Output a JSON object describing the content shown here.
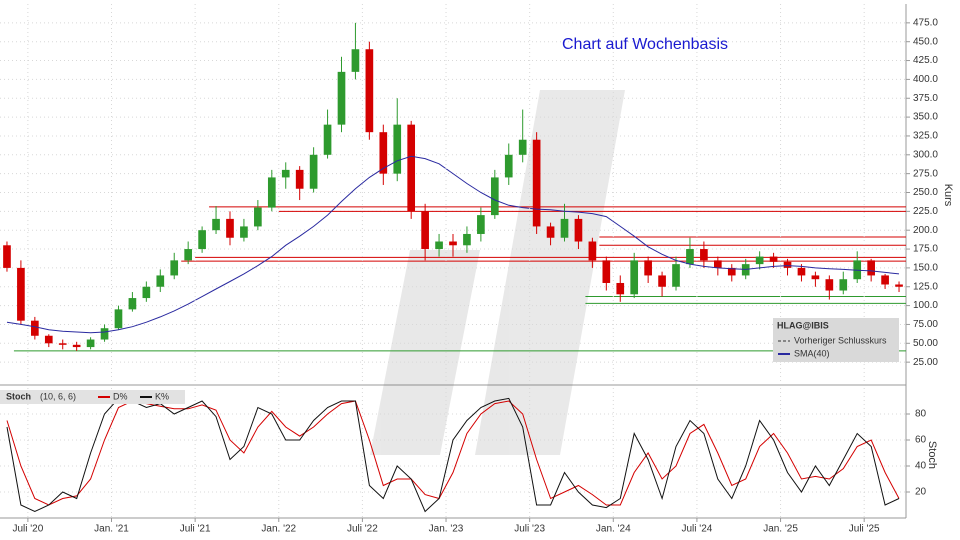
{
  "chart_data": [
    {
      "type": "candlestick",
      "title": "Chart auf Wochenbasis",
      "y_label": "Kurs",
      "instrument": "HLAG@IBIS",
      "prev_close_label": "Vorheriger Schlusskurs",
      "x": [
        "2020-05",
        "2020-06",
        "2020-07",
        "2020-08",
        "2020-09",
        "2020-10",
        "2020-11",
        "2020-12",
        "2021-01",
        "2021-02",
        "2021-03",
        "2021-04",
        "2021-05",
        "2021-06",
        "2021-07",
        "2021-08",
        "2021-09",
        "2021-10",
        "2021-11",
        "2021-12",
        "2022-01",
        "2022-02",
        "2022-03",
        "2022-04",
        "2022-05",
        "2022-06",
        "2022-07",
        "2022-08",
        "2022-09",
        "2022-10",
        "2022-11",
        "2022-12",
        "2023-01",
        "2023-02",
        "2023-03",
        "2023-04",
        "2023-05",
        "2023-06",
        "2023-07",
        "2023-08",
        "2023-09",
        "2023-10",
        "2023-11",
        "2023-12",
        "2024-01",
        "2024-02",
        "2024-03",
        "2024-04",
        "2024-05",
        "2024-06",
        "2024-07",
        "2024-08",
        "2024-09",
        "2024-10",
        "2024-11",
        "2024-12",
        "2025-01",
        "2025-02",
        "2025-03",
        "2025-04",
        "2025-05",
        "2025-06",
        "2025-07",
        "2025-08",
        "2025-09"
      ],
      "open": [
        180,
        150,
        80,
        60,
        50,
        48,
        45,
        55,
        70,
        95,
        110,
        125,
        140,
        160,
        175,
        200,
        215,
        190,
        205,
        230,
        270,
        280,
        255,
        300,
        340,
        410,
        440,
        330,
        275,
        340,
        225,
        175,
        185,
        180,
        195,
        220,
        270,
        300,
        320,
        205,
        190,
        215,
        185,
        160,
        130,
        115,
        160,
        140,
        125,
        155,
        175,
        160,
        150,
        140,
        155,
        165,
        158,
        150,
        140,
        135,
        120,
        135,
        160,
        140,
        128
      ],
      "high": [
        185,
        160,
        85,
        62,
        55,
        52,
        58,
        75,
        100,
        118,
        132,
        148,
        170,
        185,
        205,
        232,
        225,
        215,
        240,
        280,
        290,
        285,
        310,
        360,
        430,
        475,
        450,
        340,
        375,
        345,
        235,
        195,
        195,
        205,
        230,
        280,
        315,
        360,
        330,
        210,
        235,
        220,
        190,
        165,
        140,
        170,
        165,
        145,
        165,
        190,
        185,
        165,
        155,
        162,
        172,
        170,
        162,
        155,
        145,
        140,
        145,
        172,
        162,
        142,
        132
      ],
      "low": [
        145,
        75,
        55,
        45,
        42,
        40,
        42,
        52,
        68,
        92,
        105,
        118,
        135,
        155,
        170,
        195,
        180,
        185,
        200,
        225,
        255,
        240,
        250,
        295,
        330,
        400,
        320,
        260,
        265,
        215,
        160,
        165,
        165,
        170,
        185,
        215,
        260,
        290,
        195,
        180,
        185,
        175,
        150,
        120,
        105,
        110,
        130,
        112,
        120,
        150,
        150,
        140,
        132,
        135,
        148,
        150,
        140,
        132,
        125,
        108,
        115,
        130,
        132,
        122,
        118
      ],
      "close": [
        150,
        80,
        60,
        50,
        48,
        45,
        55,
        70,
        95,
        110,
        125,
        140,
        160,
        175,
        200,
        215,
        190,
        205,
        230,
        270,
        280,
        255,
        300,
        340,
        410,
        440,
        330,
        275,
        340,
        225,
        175,
        185,
        180,
        195,
        220,
        270,
        300,
        320,
        205,
        190,
        215,
        185,
        160,
        130,
        115,
        160,
        140,
        125,
        155,
        175,
        160,
        150,
        140,
        155,
        165,
        158,
        150,
        140,
        135,
        120,
        135,
        160,
        140,
        128,
        125
      ],
      "up_color": "#2e9a2e",
      "down_color": "#d40000",
      "series": [
        {
          "name": "SMA(40)",
          "color": "#2a2aa0",
          "values": [
            78,
            75,
            72,
            68,
            66,
            65,
            64,
            65,
            68,
            72,
            78,
            85,
            93,
            102,
            112,
            122,
            132,
            142,
            153,
            165,
            180,
            192,
            205,
            220,
            238,
            255,
            270,
            282,
            292,
            298,
            295,
            288,
            275,
            262,
            250,
            240,
            233,
            230,
            228,
            227,
            225,
            224,
            222,
            218,
            205,
            192,
            178,
            168,
            160,
            155,
            152,
            150,
            149,
            148,
            150,
            152,
            153,
            152,
            150,
            149,
            148,
            147,
            146,
            144,
            142
          ]
        }
      ],
      "hlines": [
        {
          "y": 231,
          "color": "#d40000",
          "start": "2021-08"
        },
        {
          "y": 225,
          "color": "#d40000",
          "start": "2022-01"
        },
        {
          "y": 164,
          "color": "#d40000",
          "start": "2021-07"
        },
        {
          "y": 159,
          "color": "#d40000",
          "start": "2021-06"
        },
        {
          "y": 191,
          "color": "#d40000",
          "start": "2023-12"
        },
        {
          "y": 180,
          "color": "#d40000",
          "start": "2023-12"
        },
        {
          "y": 112,
          "color": "#2e9a2e",
          "start": "2023-11"
        },
        {
          "y": 103,
          "color": "#2e9a2e",
          "start": "2023-11"
        },
        {
          "y": 40,
          "color": "#2e9a2e",
          "start": "2020-06"
        }
      ],
      "xlim": [
        "2020-05",
        "2025-10"
      ],
      "ylim": [
        0,
        500
      ],
      "yticks": [
        {
          "value": 25,
          "label": "25.00"
        },
        {
          "value": 50,
          "label": "50.00"
        },
        {
          "value": 75,
          "label": "75.00"
        },
        {
          "value": 100,
          "label": "100.0"
        },
        {
          "value": 125,
          "label": "125.0"
        },
        {
          "value": 150,
          "label": "150.0"
        },
        {
          "value": 175,
          "label": "175.0"
        },
        {
          "value": 200,
          "label": "200.0"
        },
        {
          "value": 225,
          "label": "225.0"
        },
        {
          "value": 250,
          "label": "250.0"
        },
        {
          "value": 275,
          "label": "275.0"
        },
        {
          "value": 300,
          "label": "300.0"
        },
        {
          "value": 325,
          "label": "325.0"
        },
        {
          "value": 350,
          "label": "350.0"
        },
        {
          "value": 375,
          "label": "375.0"
        },
        {
          "value": 400,
          "label": "400.0"
        },
        {
          "value": 425,
          "label": "425.0"
        },
        {
          "value": 450,
          "label": "450.0"
        },
        {
          "value": 475,
          "label": "475.0"
        }
      ],
      "grid": true
    },
    {
      "type": "line",
      "title": "Stoch",
      "subtitle": "(10, 6, 6)",
      "y_label": "Stoch",
      "x": [
        "2020-05",
        "2020-06",
        "2020-07",
        "2020-08",
        "2020-09",
        "2020-10",
        "2020-11",
        "2020-12",
        "2021-01",
        "2021-02",
        "2021-03",
        "2021-04",
        "2021-05",
        "2021-06",
        "2021-07",
        "2021-08",
        "2021-09",
        "2021-10",
        "2021-11",
        "2021-12",
        "2022-01",
        "2022-02",
        "2022-03",
        "2022-04",
        "2022-05",
        "2022-06",
        "2022-07",
        "2022-08",
        "2022-09",
        "2022-10",
        "2022-11",
        "2022-12",
        "2023-01",
        "2023-02",
        "2023-03",
        "2023-04",
        "2023-05",
        "2023-06",
        "2023-07",
        "2023-08",
        "2023-09",
        "2023-10",
        "2023-11",
        "2023-12",
        "2024-01",
        "2024-02",
        "2024-03",
        "2024-04",
        "2024-05",
        "2024-06",
        "2024-07",
        "2024-08",
        "2024-09",
        "2024-10",
        "2024-11",
        "2024-12",
        "2025-01",
        "2025-02",
        "2025-03",
        "2025-04",
        "2025-05",
        "2025-06",
        "2025-07",
        "2025-08",
        "2025-09"
      ],
      "series": [
        {
          "name": "D%",
          "color": "#d40000",
          "values": [
            75,
            40,
            15,
            10,
            15,
            17,
            30,
            60,
            85,
            90,
            88,
            86,
            84,
            84,
            87,
            83,
            60,
            50,
            70,
            82,
            70,
            63,
            70,
            80,
            88,
            90,
            60,
            25,
            30,
            30,
            18,
            15,
            35,
            65,
            80,
            88,
            90,
            80,
            45,
            15,
            20,
            25,
            18,
            10,
            10,
            35,
            50,
            30,
            40,
            65,
            72,
            50,
            25,
            30,
            55,
            65,
            50,
            30,
            32,
            30,
            38,
            55,
            60,
            35,
            15
          ]
        },
        {
          "name": "K%",
          "color": "#111111",
          "values": [
            70,
            10,
            5,
            10,
            20,
            15,
            50,
            80,
            92,
            90,
            85,
            88,
            80,
            85,
            90,
            78,
            45,
            55,
            85,
            80,
            60,
            60,
            75,
            85,
            90,
            90,
            25,
            15,
            40,
            30,
            5,
            15,
            60,
            75,
            85,
            90,
            92,
            70,
            10,
            10,
            35,
            20,
            10,
            8,
            15,
            65,
            45,
            15,
            55,
            75,
            65,
            30,
            15,
            40,
            75,
            60,
            35,
            20,
            40,
            25,
            45,
            65,
            55,
            10,
            15
          ]
        }
      ],
      "xlim": [
        "2020-05",
        "2025-10"
      ],
      "ylim": [
        0,
        100
      ],
      "yticks": [
        20,
        40,
        60,
        80
      ],
      "xticks": [
        {
          "value": "2020-07",
          "label": "Juli '20"
        },
        {
          "value": "2021-01",
          "label": "Jan. '21"
        },
        {
          "value": "2021-07",
          "label": "Juli '21"
        },
        {
          "value": "2022-01",
          "label": "Jan. '22"
        },
        {
          "value": "2022-07",
          "label": "Juli '22"
        },
        {
          "value": "2023-01",
          "label": "Jan. '23"
        },
        {
          "value": "2023-07",
          "label": "Juli '23"
        },
        {
          "value": "2024-01",
          "label": "Jan. '24"
        },
        {
          "value": "2024-07",
          "label": "Juli '24"
        },
        {
          "value": "2025-01",
          "label": "Jan. '25"
        },
        {
          "value": "2025-07",
          "label": "Juli '25"
        }
      ],
      "grid": true
    }
  ]
}
